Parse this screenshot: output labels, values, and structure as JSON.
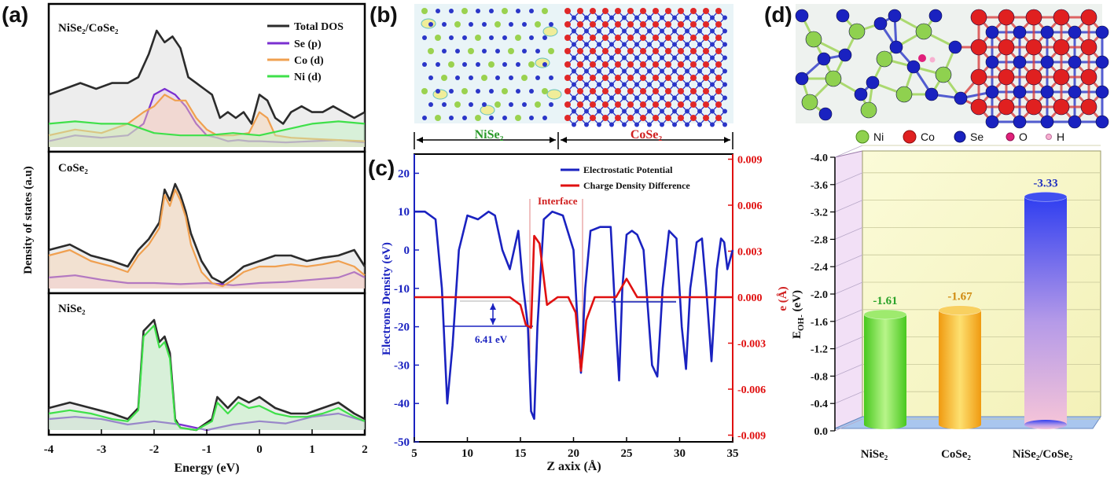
{
  "panels": {
    "a": {
      "label": "(a)",
      "ylabel": "Density of states (a.u)",
      "xlabel": "Energy (eV)",
      "xticks": [
        "-4",
        "-3",
        "-2",
        "-1",
        "0",
        "1",
        "2"
      ],
      "sub1_title": "NiSe₂/CoSe₂",
      "sub2_title": "CoSe₂",
      "sub3_title": "NiSe₂",
      "legend": [
        "Total DOS",
        "Se (p)",
        "Co (d)",
        "Ni (d)"
      ]
    },
    "b": {
      "label": "(b)",
      "left_region": "NiSe₂",
      "right_region": "CoSe₂"
    },
    "c": {
      "label": "(c)",
      "ylabel_left": "Electrons Density (eV)",
      "ylabel_right": "e (Å)",
      "xlabel": "Z axix (Å)",
      "xticks": [
        "5",
        "10",
        "15",
        "20",
        "25",
        "30",
        "35"
      ],
      "yticks_left": [
        "20",
        "10",
        "0",
        "-10",
        "-20",
        "-30",
        "-40",
        "-50"
      ],
      "yticks_right": [
        "0.009",
        "0.006",
        "0.003",
        "0.000",
        "-0.003",
        "-0.006",
        "-0.009"
      ],
      "legend": [
        "Electrostatic Potential",
        "Charge Density Difference"
      ],
      "interface_label": "Interface",
      "gap_label": "6.41 eV"
    },
    "d": {
      "label": "(d)",
      "atom_legend": [
        "Ni",
        "Co",
        "Se",
        "O",
        "H"
      ],
      "ylabel": "E",
      "ylabel_sub": "OH-",
      "ylabel_unit": " (eV)",
      "yticks": [
        "-4.0",
        "-3.6",
        "-3.2",
        "-2.8",
        "-2.4",
        "-2.0",
        "-1.6",
        "-1.2",
        "-0.8",
        "-0.4",
        "0.0"
      ],
      "xtick_labels": [
        "NiSe₂",
        "CoSe₂",
        "NiSe₂/CoSe₂"
      ]
    }
  },
  "colors": {
    "total": "#2b2b2b",
    "se_p": "#7a2fd0",
    "co_d": "#f0a050",
    "ni_d": "#3fe04a",
    "potential": "#1a22c0",
    "charge": "#e01010",
    "bar_green": "#6fe03a",
    "bar_orange": "#f4b12a",
    "bar_blue": "#3a4ef2"
  },
  "chart_data": [
    {
      "type": "line",
      "title": "NiSe₂/CoSe₂",
      "xlim": [
        -4,
        2
      ],
      "series": [
        {
          "name": "Total DOS",
          "x": [
            -4,
            -3.7,
            -3.4,
            -3.1,
            -2.8,
            -2.5,
            -2.3,
            -2.1,
            -1.95,
            -1.8,
            -1.65,
            -1.5,
            -1.35,
            -1.2,
            -1.05,
            -0.9,
            -0.75,
            -0.6,
            -0.45,
            -0.3,
            -0.15,
            0,
            0.15,
            0.3,
            0.45,
            0.6,
            0.8,
            1.0,
            1.2,
            1.4,
            1.6,
            1.8,
            2.0
          ],
          "y": [
            0.45,
            0.5,
            0.55,
            0.5,
            0.55,
            0.55,
            0.6,
            0.8,
            1.0,
            0.9,
            0.95,
            0.85,
            0.6,
            0.55,
            0.5,
            0.45,
            0.25,
            0.3,
            0.25,
            0.3,
            0.2,
            0.45,
            0.4,
            0.25,
            0.2,
            0.3,
            0.35,
            0.3,
            0.3,
            0.35,
            0.3,
            0.25,
            0.3
          ]
        },
        {
          "name": "Se (p)",
          "x": [
            -4,
            -3.5,
            -3,
            -2.5,
            -2.2,
            -2.0,
            -1.8,
            -1.6,
            -1.4,
            -1.2,
            -1.0,
            -0.8,
            -0.6,
            -0.4,
            -0.2,
            0,
            0.5,
            1.0,
            1.5,
            2.0
          ],
          "y": [
            0.05,
            0.1,
            0.08,
            0.1,
            0.2,
            0.45,
            0.5,
            0.45,
            0.35,
            0.2,
            0.1,
            0.08,
            0.05,
            0.06,
            0.05,
            0.05,
            0.04,
            0.05,
            0.06,
            0.04
          ]
        },
        {
          "name": "Co (d)",
          "x": [
            -4,
            -3.5,
            -3,
            -2.5,
            -2.2,
            -2.0,
            -1.8,
            -1.6,
            -1.4,
            -1.2,
            -1.0,
            -0.8,
            -0.5,
            -0.2,
            0,
            0.15,
            0.3,
            0.6,
            1.0,
            1.5,
            2.0
          ],
          "y": [
            0.1,
            0.15,
            0.12,
            0.2,
            0.3,
            0.35,
            0.45,
            0.4,
            0.4,
            0.25,
            0.15,
            0.1,
            0.1,
            0.12,
            0.3,
            0.25,
            0.1,
            0.08,
            0.07,
            0.06,
            0.05
          ]
        },
        {
          "name": "Ni (d)",
          "x": [
            -4,
            -3.5,
            -3,
            -2.5,
            -2.0,
            -1.5,
            -1.0,
            -0.5,
            0,
            0.5,
            1.0,
            1.5,
            2.0
          ],
          "y": [
            0.2,
            0.22,
            0.2,
            0.2,
            0.12,
            0.1,
            0.1,
            0.12,
            0.1,
            0.15,
            0.2,
            0.22,
            0.2
          ]
        }
      ]
    },
    {
      "type": "line",
      "title": "CoSe₂",
      "xlim": [
        -4,
        2
      ],
      "series": [
        {
          "name": "Total DOS",
          "x": [
            -4,
            -3.6,
            -3.2,
            -2.8,
            -2.5,
            -2.3,
            -2.1,
            -1.9,
            -1.8,
            -1.7,
            -1.6,
            -1.5,
            -1.4,
            -1.3,
            -1.1,
            -0.9,
            -0.7,
            -0.5,
            -0.3,
            0,
            0.3,
            0.6,
            0.9,
            1.2,
            1.5,
            1.8,
            2.0
          ],
          "y": [
            0.35,
            0.4,
            0.3,
            0.25,
            0.2,
            0.35,
            0.45,
            0.6,
            0.9,
            0.8,
            0.95,
            0.85,
            0.7,
            0.5,
            0.25,
            0.1,
            0.05,
            0.12,
            0.2,
            0.25,
            0.3,
            0.3,
            0.25,
            0.28,
            0.3,
            0.35,
            0.2
          ]
        },
        {
          "name": "Se (p)",
          "x": [
            -4,
            -3.5,
            -3,
            -2.5,
            -2.0,
            -1.5,
            -1.0,
            -0.5,
            0,
            0.5,
            1.0,
            1.5,
            1.8,
            2.0
          ],
          "y": [
            0.1,
            0.12,
            0.08,
            0.05,
            0.05,
            0.04,
            0.05,
            0.03,
            0.05,
            0.06,
            0.08,
            0.1,
            0.15,
            0.1
          ]
        },
        {
          "name": "Co (d)",
          "x": [
            -4,
            -3.6,
            -3.2,
            -2.8,
            -2.5,
            -2.3,
            -2.1,
            -1.9,
            -1.8,
            -1.7,
            -1.6,
            -1.5,
            -1.4,
            -1.3,
            -1.1,
            -0.9,
            -0.7,
            -0.5,
            -0.3,
            0,
            0.3,
            0.6,
            0.9,
            1.2,
            1.5,
            1.8,
            2.0
          ],
          "y": [
            0.3,
            0.35,
            0.25,
            0.2,
            0.15,
            0.3,
            0.4,
            0.55,
            0.85,
            0.75,
            0.9,
            0.8,
            0.65,
            0.4,
            0.15,
            0.05,
            0.02,
            0.08,
            0.15,
            0.2,
            0.2,
            0.22,
            0.2,
            0.22,
            0.25,
            0.2,
            0.12
          ]
        }
      ]
    },
    {
      "type": "line",
      "title": "NiSe₂",
      "xlim": [
        -4,
        2
      ],
      "series": [
        {
          "name": "Total DOS",
          "x": [
            -4,
            -3.6,
            -3.2,
            -2.8,
            -2.5,
            -2.3,
            -2.2,
            -2.1,
            -2.0,
            -1.9,
            -1.8,
            -1.7,
            -1.6,
            -1.5,
            -1.2,
            -0.9,
            -0.8,
            -0.6,
            -0.4,
            -0.2,
            0,
            0.3,
            0.6,
            0.9,
            1.2,
            1.5,
            1.8,
            2.0
          ],
          "y": [
            0.2,
            0.25,
            0.2,
            0.15,
            0.1,
            0.2,
            0.9,
            0.95,
            1.0,
            0.8,
            0.85,
            0.7,
            0.1,
            0.02,
            0.0,
            0.1,
            0.3,
            0.2,
            0.3,
            0.25,
            0.3,
            0.2,
            0.15,
            0.15,
            0.2,
            0.25,
            0.15,
            0.1
          ]
        },
        {
          "name": "Se (p)",
          "x": [
            -4,
            -3.5,
            -3,
            -2.5,
            -2.0,
            -1.5,
            -1.0,
            -0.5,
            0,
            0.5,
            1.0,
            1.5,
            2.0
          ],
          "y": [
            0.1,
            0.12,
            0.1,
            0.05,
            0.08,
            0.05,
            0.0,
            0.05,
            0.08,
            0.06,
            0.12,
            0.15,
            0.08
          ]
        },
        {
          "name": "Ni (d)",
          "x": [
            -4,
            -3.6,
            -3.2,
            -2.8,
            -2.5,
            -2.3,
            -2.2,
            -2.1,
            -2.0,
            -1.9,
            -1.8,
            -1.7,
            -1.6,
            -1.5,
            -1.2,
            -0.9,
            -0.8,
            -0.6,
            -0.4,
            -0.2,
            0,
            0.3,
            0.6,
            0.9,
            1.2,
            1.5,
            1.8,
            2.0
          ],
          "y": [
            0.15,
            0.18,
            0.15,
            0.1,
            0.08,
            0.18,
            0.85,
            0.9,
            0.95,
            0.75,
            0.8,
            0.65,
            0.08,
            0.02,
            0.0,
            0.08,
            0.25,
            0.15,
            0.25,
            0.2,
            0.22,
            0.15,
            0.12,
            0.12,
            0.15,
            0.2,
            0.12,
            0.08
          ]
        }
      ]
    },
    {
      "type": "line",
      "xlabel": "Z axix (Å)",
      "ylabel": "Electrons Density (eV)",
      "xlim": [
        5,
        35
      ],
      "ylim": [
        -50,
        25
      ],
      "series": [
        {
          "name": "Electrostatic Potential",
          "x": [
            5,
            6,
            7,
            7.6,
            8.1,
            8.6,
            9.2,
            10,
            11,
            12,
            12.6,
            13.3,
            14,
            14.4,
            14.8,
            15.2,
            15.7,
            16.0,
            16.3,
            16.6,
            17.2,
            18,
            19,
            20,
            20.4,
            20.7,
            21.1,
            21.6,
            22.5,
            23.5,
            24.0,
            24.3,
            24.6,
            25,
            25.5,
            26,
            26.6,
            27.4,
            27.9,
            28.4,
            29,
            29.7,
            30.2,
            30.6,
            31,
            31.6,
            32.1,
            32.5,
            33,
            33.5,
            33.9,
            34.2,
            34.5,
            35
          ],
          "y": [
            10,
            10,
            8,
            -10,
            -40,
            -25,
            0,
            9,
            8,
            10,
            9,
            0,
            -5,
            0,
            5,
            -8,
            -20,
            -42,
            -44,
            -20,
            8,
            10,
            9,
            0,
            -20,
            -32,
            -10,
            5,
            6,
            6,
            -20,
            -34,
            -10,
            4,
            5,
            4,
            0,
            -30,
            -33,
            -10,
            5,
            3,
            -20,
            -31,
            -10,
            2,
            3,
            -10,
            -29,
            -5,
            3,
            2,
            -5,
            0
          ]
        },
        {
          "name": "Charge Density Difference",
          "x": [
            5,
            8,
            12,
            14,
            15,
            15.5,
            16,
            16.3,
            16.8,
            17.5,
            18.5,
            19.5,
            20.2,
            20.7,
            21.2,
            22,
            24,
            25,
            26,
            30,
            35
          ],
          "y": [
            0,
            0,
            0,
            0,
            -0.0005,
            -0.0018,
            -0.002,
            0.004,
            0.0035,
            -0.0005,
            0,
            0,
            -0.001,
            -0.0048,
            -0.0015,
            0,
            0,
            0.0012,
            0,
            0,
            0
          ]
        }
      ]
    },
    {
      "type": "bar",
      "ylabel": "E_OH- (eV)",
      "categories": [
        "NiSe₂",
        "CoSe₂",
        "NiSe₂/CoSe₂"
      ],
      "values": [
        -1.61,
        -1.67,
        -3.33
      ],
      "ylim": [
        0,
        -4
      ]
    }
  ],
  "bar_labels": [
    "-1.61",
    "-1.67",
    "-3.33"
  ]
}
